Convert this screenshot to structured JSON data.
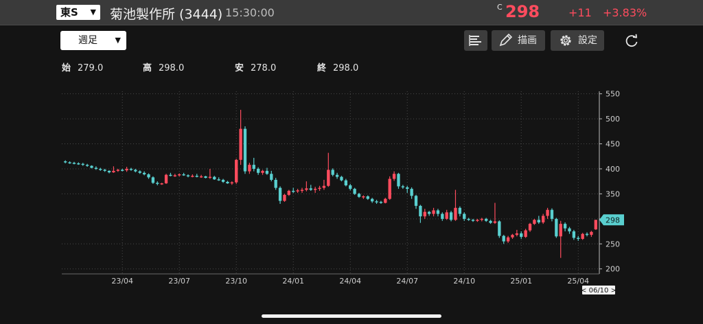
{
  "header": {
    "exchange": "東S",
    "title": "菊池製作所 (3444)",
    "time": "15:30:00",
    "price_label": "C",
    "price": "298",
    "change": "+11",
    "change_pct": "+3.83%"
  },
  "toolbar": {
    "period": "週足",
    "draw_label": "描画",
    "settings_label": "設定"
  },
  "ohlc": {
    "open_label": "始",
    "open": "279.0",
    "high_label": "高",
    "high": "298.0",
    "low_label": "安",
    "low": "278.0",
    "close_label": "終",
    "close": "298.0"
  },
  "colors": {
    "up": "#ff4c5e",
    "down": "#59cfcf",
    "grid": "#4a4a4a",
    "text": "#cfcfcf"
  },
  "chart_data": {
    "type": "candlestick",
    "ylim": [
      190,
      555
    ],
    "y_ticks": [
      550,
      500,
      450,
      400,
      350,
      300,
      250,
      200
    ],
    "x_ticks": [
      "23/04",
      "23/07",
      "23/10",
      "24/01",
      "24/04",
      "24/07",
      "24/10",
      "25/01",
      "25/04"
    ],
    "x_tick_index": [
      13,
      26,
      39,
      52,
      65,
      78,
      91,
      104,
      117
    ],
    "last_price_label": "298",
    "date_badge": "< 06/10 >",
    "candles": [
      [
        415,
        417,
        411,
        413
      ],
      [
        413,
        415,
        410,
        412
      ],
      [
        412,
        414,
        409,
        411
      ],
      [
        411,
        413,
        408,
        410
      ],
      [
        410,
        412,
        406,
        408
      ],
      [
        408,
        410,
        404,
        406
      ],
      [
        406,
        407,
        401,
        402
      ],
      [
        402,
        405,
        398,
        400
      ],
      [
        400,
        402,
        396,
        398
      ],
      [
        398,
        400,
        394,
        396
      ],
      [
        396,
        397,
        391,
        393
      ],
      [
        393,
        405,
        392,
        396
      ],
      [
        396,
        400,
        394,
        398
      ],
      [
        398,
        400,
        395,
        397
      ],
      [
        397,
        404,
        394,
        400
      ],
      [
        400,
        402,
        396,
        398
      ],
      [
        398,
        400,
        393,
        395
      ],
      [
        395,
        397,
        390,
        392
      ],
      [
        392,
        395,
        387,
        389
      ],
      [
        389,
        391,
        380,
        383
      ],
      [
        383,
        385,
        370,
        372
      ],
      [
        372,
        375,
        367,
        370
      ],
      [
        370,
        372,
        368,
        371
      ],
      [
        371,
        390,
        370,
        388
      ],
      [
        388,
        392,
        385,
        386
      ],
      [
        386,
        390,
        384,
        387
      ],
      [
        387,
        391,
        385,
        389
      ],
      [
        389,
        392,
        386,
        387
      ],
      [
        387,
        389,
        383,
        385
      ],
      [
        385,
        389,
        383,
        386
      ],
      [
        386,
        390,
        383,
        384
      ],
      [
        384,
        388,
        382,
        385
      ],
      [
        385,
        386,
        381,
        382
      ],
      [
        382,
        400,
        380,
        384
      ],
      [
        384,
        386,
        378,
        379
      ],
      [
        379,
        383,
        376,
        378
      ],
      [
        378,
        380,
        372,
        374
      ],
      [
        374,
        376,
        370,
        371
      ],
      [
        371,
        375,
        368,
        373
      ],
      [
        373,
        420,
        370,
        418
      ],
      [
        418,
        518,
        408,
        480
      ],
      [
        480,
        485,
        390,
        395
      ],
      [
        395,
        412,
        390,
        408
      ],
      [
        408,
        422,
        395,
        400
      ],
      [
        400,
        403,
        388,
        392
      ],
      [
        392,
        398,
        388,
        396
      ],
      [
        396,
        402,
        388,
        390
      ],
      [
        390,
        396,
        375,
        378
      ],
      [
        378,
        382,
        358,
        362
      ],
      [
        362,
        365,
        330,
        336
      ],
      [
        336,
        350,
        334,
        348
      ],
      [
        348,
        358,
        346,
        356
      ],
      [
        356,
        362,
        352,
        355
      ],
      [
        355,
        360,
        352,
        357
      ],
      [
        357,
        362,
        352,
        358
      ],
      [
        358,
        375,
        355,
        361
      ],
      [
        361,
        368,
        356,
        358
      ],
      [
        358,
        364,
        352,
        360
      ],
      [
        360,
        366,
        356,
        362
      ],
      [
        362,
        378,
        358,
        366
      ],
      [
        366,
        432,
        364,
        398
      ],
      [
        398,
        401,
        385,
        388
      ],
      [
        388,
        392,
        380,
        384
      ],
      [
        384,
        386,
        375,
        377
      ],
      [
        377,
        380,
        365,
        367
      ],
      [
        367,
        370,
        357,
        360
      ],
      [
        360,
        362,
        348,
        350
      ],
      [
        350,
        352,
        342,
        344
      ],
      [
        344,
        347,
        340,
        345
      ],
      [
        345,
        347,
        338,
        340
      ],
      [
        340,
        342,
        332,
        335
      ],
      [
        335,
        338,
        330,
        334
      ],
      [
        334,
        336,
        330,
        332
      ],
      [
        332,
        342,
        331,
        340
      ],
      [
        340,
        385,
        338,
        380
      ],
      [
        380,
        395,
        376,
        390
      ],
      [
        390,
        392,
        360,
        365
      ],
      [
        365,
        368,
        360,
        363
      ],
      [
        363,
        366,
        352,
        360
      ],
      [
        360,
        363,
        340,
        346
      ],
      [
        346,
        348,
        320,
        326
      ],
      [
        326,
        328,
        292,
        305
      ],
      [
        305,
        320,
        300,
        314
      ],
      [
        314,
        316,
        306,
        310
      ],
      [
        310,
        322,
        305,
        317
      ],
      [
        317,
        320,
        305,
        310
      ],
      [
        310,
        313,
        296,
        300
      ],
      [
        300,
        318,
        298,
        313
      ],
      [
        313,
        316,
        295,
        298
      ],
      [
        298,
        358,
        296,
        322
      ],
      [
        322,
        325,
        305,
        310
      ],
      [
        310,
        313,
        296,
        300
      ],
      [
        300,
        302,
        296,
        298
      ],
      [
        298,
        300,
        294,
        296
      ],
      [
        296,
        300,
        294,
        298
      ],
      [
        298,
        302,
        295,
        300
      ],
      [
        300,
        302,
        294,
        296
      ],
      [
        296,
        298,
        290,
        292
      ],
      [
        292,
        332,
        290,
        295
      ],
      [
        295,
        297,
        262,
        266
      ],
      [
        266,
        268,
        250,
        255
      ],
      [
        255,
        266,
        252,
        263
      ],
      [
        263,
        270,
        260,
        268
      ],
      [
        268,
        278,
        265,
        271
      ],
      [
        271,
        275,
        260,
        264
      ],
      [
        264,
        280,
        262,
        277
      ],
      [
        277,
        292,
        274,
        290
      ],
      [
        290,
        300,
        288,
        298
      ],
      [
        298,
        306,
        290,
        293
      ],
      [
        293,
        310,
        290,
        306
      ],
      [
        306,
        322,
        300,
        318
      ],
      [
        318,
        321,
        295,
        300
      ],
      [
        300,
        302,
        262,
        265
      ],
      [
        265,
        296,
        222,
        290
      ],
      [
        290,
        293,
        275,
        281
      ],
      [
        281,
        284,
        270,
        275
      ],
      [
        275,
        278,
        258,
        262
      ],
      [
        262,
        266,
        256,
        260
      ],
      [
        260,
        272,
        258,
        270
      ],
      [
        270,
        273,
        265,
        268
      ],
      [
        268,
        276,
        264,
        274
      ],
      [
        279,
        298,
        278,
        298
      ]
    ]
  }
}
